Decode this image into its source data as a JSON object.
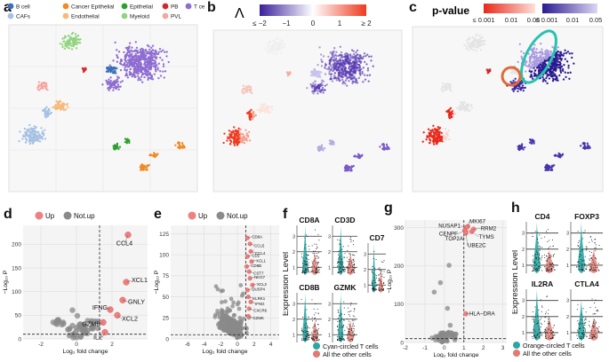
{
  "panel_labels": [
    "a",
    "b",
    "c",
    "d",
    "e",
    "f",
    "g",
    "h"
  ],
  "panel_a": {
    "legend": [
      {
        "name": "B cell",
        "color": "#3b6fb6"
      },
      {
        "name": "Cancer Epithelial",
        "color": "#f08a24"
      },
      {
        "name": "Epithelial",
        "color": "#2ca02c"
      },
      {
        "name": "PB",
        "color": "#d62728"
      },
      {
        "name": "T cell",
        "color": "#8e6cd1"
      },
      {
        "name": "CAFs",
        "color": "#a6c1e4"
      },
      {
        "name": "Endothelial",
        "color": "#f6b97b"
      },
      {
        "name": "Myeloid",
        "color": "#90d47f"
      },
      {
        "name": "PVL",
        "color": "#f4a6a0"
      }
    ]
  },
  "panel_b": {
    "symbol": "Λ",
    "colorbar_ticks": [
      "≤ −2",
      "−1",
      "0",
      "1",
      "≥ 2"
    ],
    "colors": {
      "low": "#4a2fa0",
      "mid": "#ffffff",
      "high": "#e8331f"
    }
  },
  "panel_c": {
    "title": "p-value",
    "scale_red_ticks": [
      "≤ 0.001",
      "0.01",
      "0.05"
    ],
    "scale_blue_ticks": [
      "≤ 0.001",
      "0.01",
      "0.05"
    ]
  },
  "legend_updown": {
    "up": "Up",
    "notup": "Not.up",
    "up_color": "#f08080",
    "notup_color": "#8a8a8a"
  },
  "chart_data": [
    {
      "panel": "d",
      "type": "scatter",
      "xlabel": "Log₂ fold change",
      "ylabel": "−Log₁₀ P",
      "xlim": [
        -3,
        4
      ],
      "ylim": [
        0,
        240
      ],
      "xticks": [
        "-2",
        "0",
        "2"
      ],
      "yticks": [
        "0",
        "50",
        "100",
        "150",
        "200"
      ],
      "threshold_x": 1.3,
      "threshold_y": 10,
      "up_genes": [
        {
          "label": "CCL4",
          "x": 2.9,
          "y": 220
        },
        {
          "label": "XCL1",
          "x": 2.8,
          "y": 120
        },
        {
          "label": "GNLY",
          "x": 2.6,
          "y": 82
        },
        {
          "label": "IFNG",
          "x": 1.9,
          "y": 62
        },
        {
          "label": "XCL2",
          "x": 2.3,
          "y": 50
        },
        {
          "label": "GZMB",
          "x": 1.5,
          "y": 35
        },
        {
          "label": "IL2",
          "x": 1.6,
          "y": 14
        }
      ]
    },
    {
      "panel": "e",
      "type": "scatter",
      "xlabel": "Log₂ fold change",
      "ylabel": "−Log₁₀ P",
      "xlim": [
        -8,
        5
      ],
      "ylim": [
        0,
        135
      ],
      "xticks": [
        "-6",
        "-4",
        "-2",
        "0",
        "2",
        "4"
      ],
      "yticks": [
        "0",
        "25",
        "50",
        "75",
        "100",
        "125"
      ],
      "threshold_x": 1,
      "threshold_y": 5,
      "up_genes": [
        {
          "label": "CD8A",
          "x": 1.2,
          "y": 120
        },
        {
          "label": "CCL5",
          "x": 1.5,
          "y": 113
        },
        {
          "label": "CD8B",
          "x": 1.1,
          "y": 86
        },
        {
          "label": "CCL4",
          "x": 1.6,
          "y": 104
        },
        {
          "label": "XCL1",
          "x": 1.7,
          "y": 92
        },
        {
          "label": "GZMK",
          "x": 1.3,
          "y": 27
        },
        {
          "label": "NKG7",
          "x": 1.5,
          "y": 72
        },
        {
          "label": "CST7",
          "x": 1.4,
          "y": 80
        },
        {
          "label": "CD2",
          "x": 1.2,
          "y": 98
        },
        {
          "label": "KLRK1",
          "x": 1.3,
          "y": 50
        },
        {
          "label": "XCL2",
          "x": 1.8,
          "y": 64
        },
        {
          "label": "IFNG",
          "x": 1.6,
          "y": 44
        },
        {
          "label": "DUSP4",
          "x": 1.2,
          "y": 58
        },
        {
          "label": "CXCR6",
          "x": 1.4,
          "y": 36
        }
      ]
    },
    {
      "panel": "g",
      "type": "scatter",
      "xlabel": "Log₂ fold change",
      "ylabel": "−Log₁₀ P",
      "xlim": [
        -2,
        3.2
      ],
      "ylim": [
        0,
        320
      ],
      "xticks": [
        "-2",
        "-1",
        "0",
        "1",
        "2",
        "3"
      ],
      "yticks": [
        "0",
        "100",
        "200",
        "300"
      ],
      "threshold_x": 1,
      "threshold_y": 10,
      "up_genes": [
        {
          "label": "MKI67",
          "x": 1.2,
          "y": 303
        },
        {
          "label": "NUSAP1",
          "x": 1.1,
          "y": 300
        },
        {
          "label": "RRM2",
          "x": 1.5,
          "y": 296
        },
        {
          "label": "CENPF",
          "x": 1.05,
          "y": 293
        },
        {
          "label": "TOP2A",
          "x": 1.1,
          "y": 290
        },
        {
          "label": "TYMS",
          "x": 1.4,
          "y": 290
        },
        {
          "label": "UBE2C",
          "x": 1.1,
          "y": 286
        },
        {
          "label": "HLA−DRA",
          "x": 1.1,
          "y": 75
        }
      ]
    },
    {
      "panel": "f",
      "type": "violin",
      "ylabel": "Expression Level",
      "genes": [
        "CD8A",
        "CD3D",
        "CD7",
        "CD8B",
        "GZMK"
      ],
      "groups": [
        "Cyan-circled T cells",
        "All the other cells"
      ],
      "group_colors": [
        "#2aa7a3",
        "#e07a72"
      ]
    },
    {
      "panel": "h",
      "type": "violin",
      "ylabel": "Expression Level",
      "genes": [
        "CD4",
        "FOXP3",
        "IL2RA",
        "CTLA4"
      ],
      "groups": [
        "Orange-circled T cells",
        "All the other cells"
      ],
      "group_colors": [
        "#2aa7a3",
        "#e07a72"
      ]
    }
  ],
  "violin_ticks": [
    "1",
    "2",
    "3"
  ]
}
